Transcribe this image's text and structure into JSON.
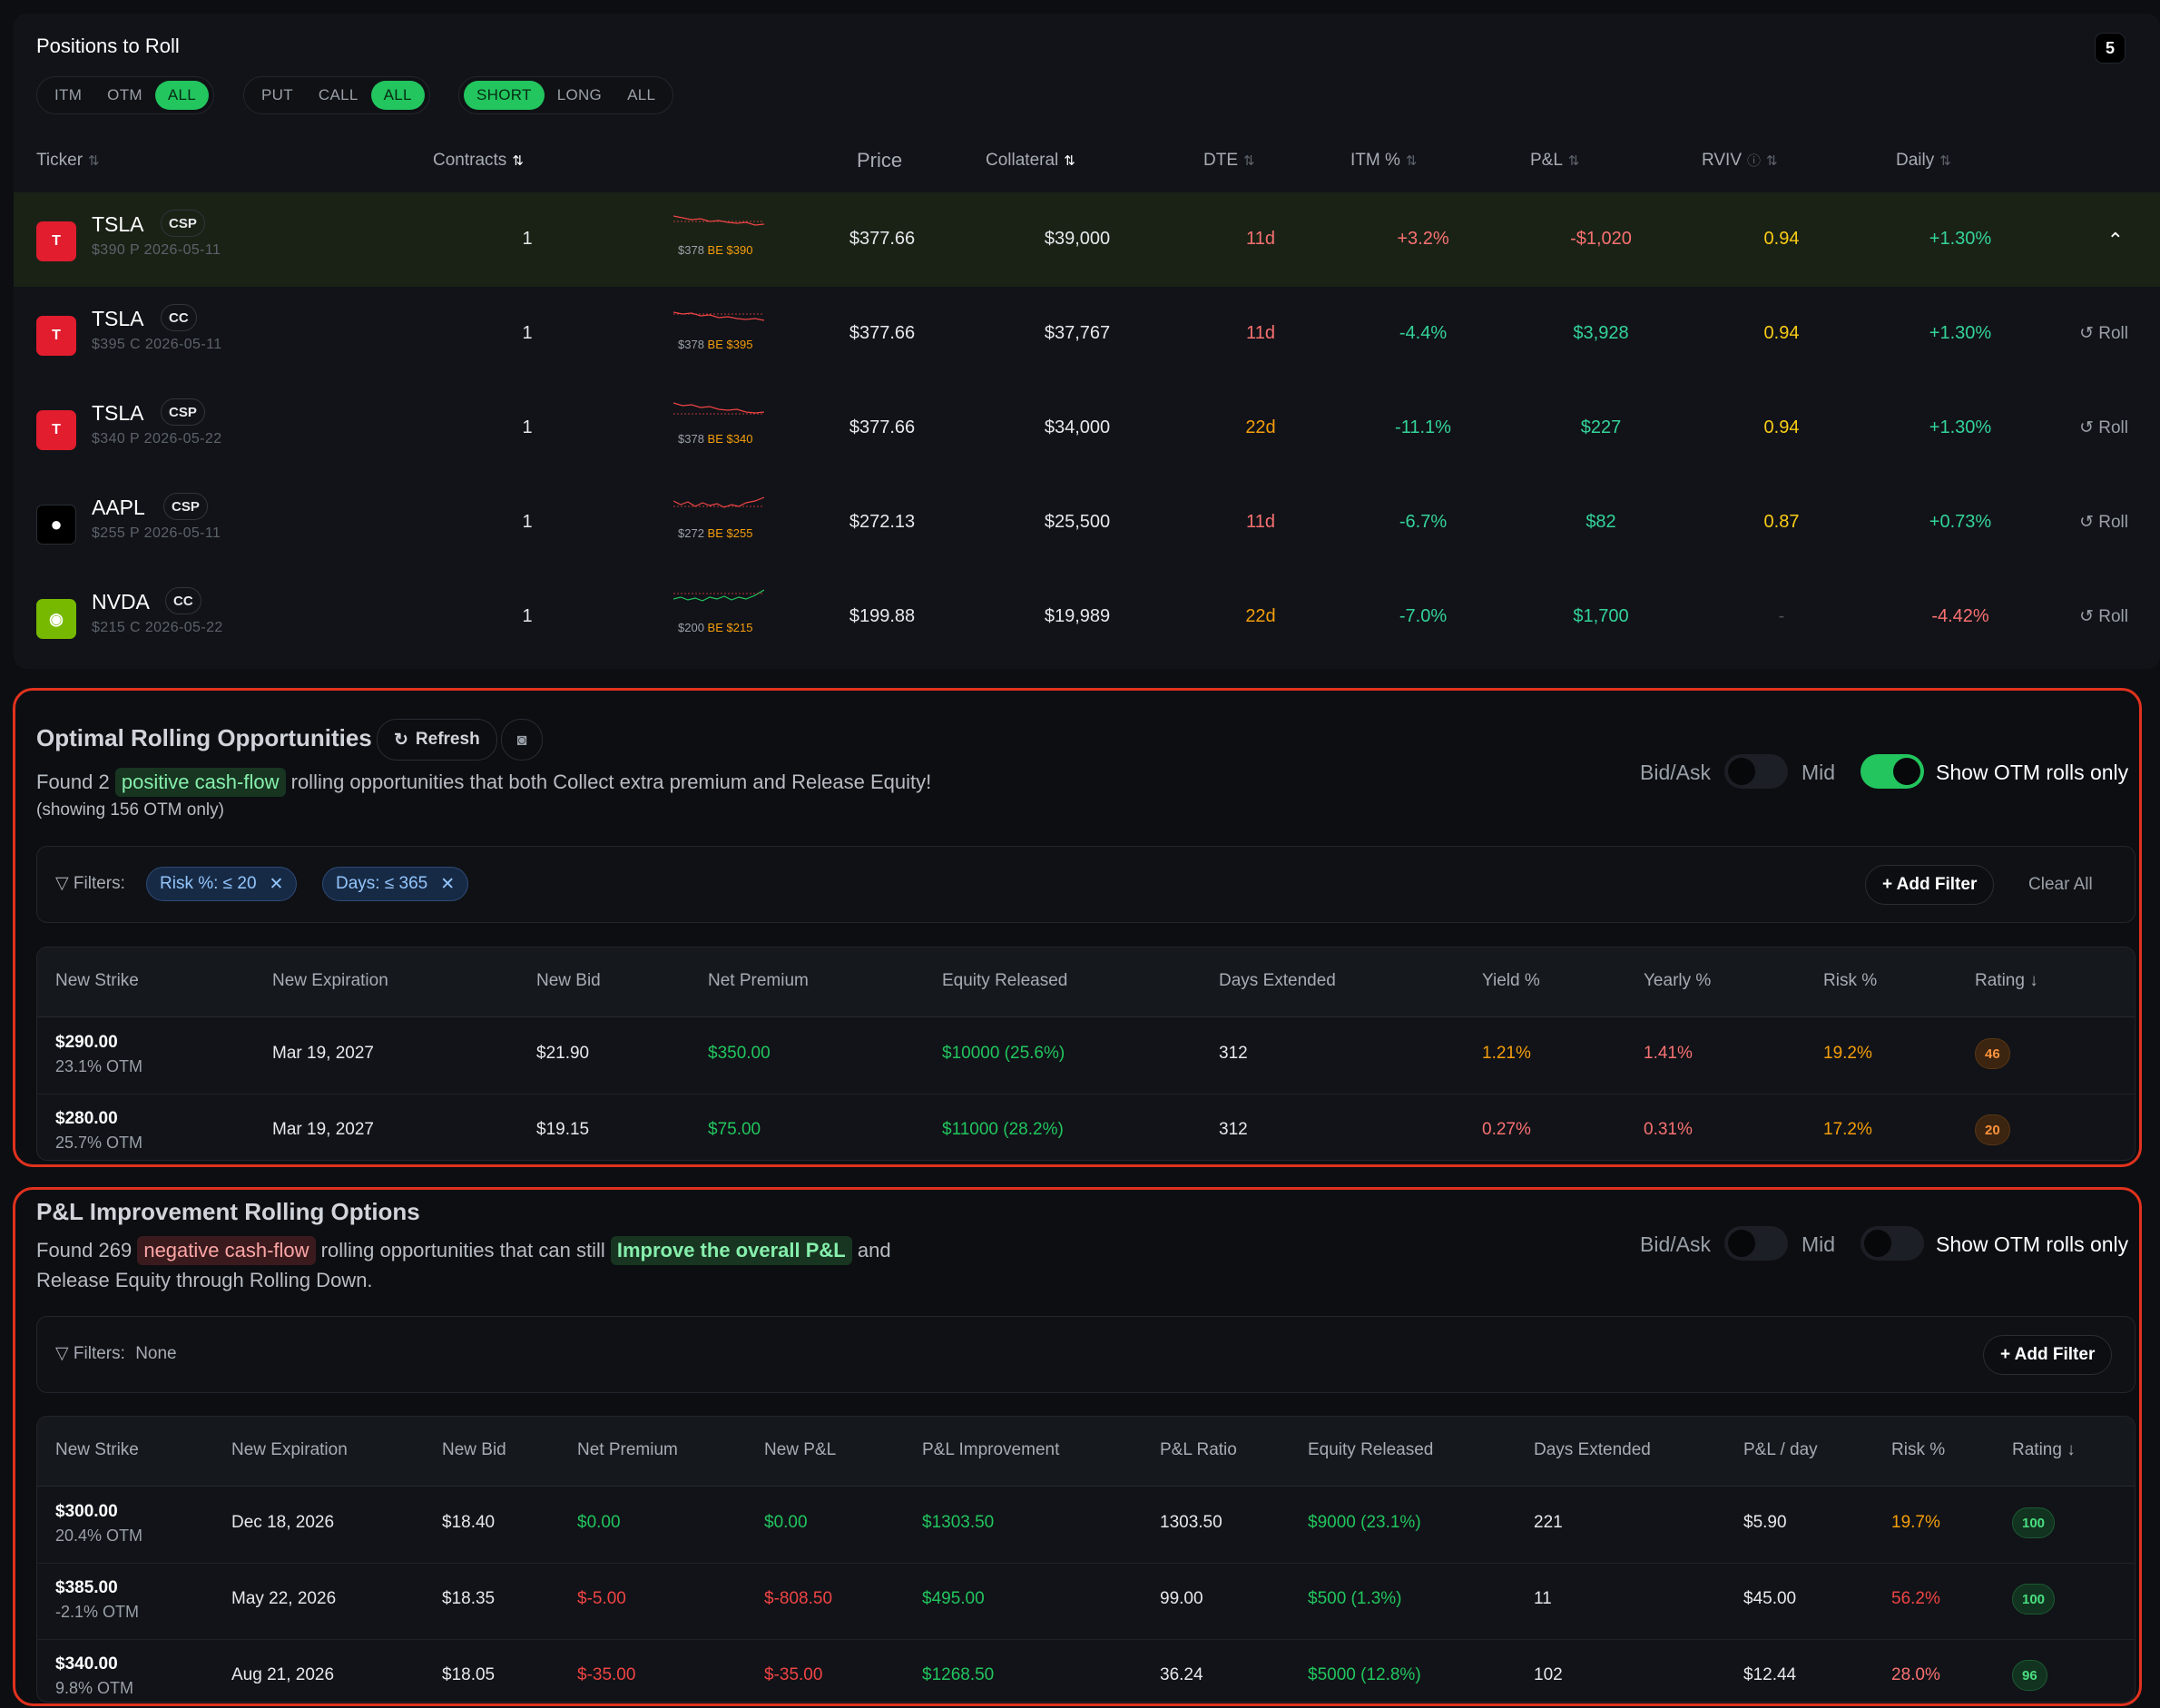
{
  "positions": {
    "title": "Positions to Roll",
    "count": "5",
    "filter_moneyness": [
      "ITM",
      "OTM",
      "ALL"
    ],
    "filter_type": [
      "PUT",
      "CALL",
      "ALL"
    ],
    "filter_side": [
      "SHORT",
      "LONG",
      "ALL"
    ],
    "columns": {
      "ticker": "Ticker",
      "contracts": "Contracts",
      "price": "Price",
      "collateral": "Collateral",
      "dte": "DTE",
      "itm": "ITM %",
      "pl": "P&L",
      "rviv": "RVIV",
      "daily": "Daily"
    },
    "roll_label": "Roll",
    "rows": [
      {
        "ticker": "TSLA",
        "tag": "CSP",
        "detail": "$390 P 2026-05-11",
        "contracts": "1",
        "spot": "$378",
        "be": "BE $390",
        "price": "$377.66",
        "collateral": "$39,000",
        "dte": "11d",
        "itm": "+3.2%",
        "pl": "-$1,020",
        "rviv": "0.94",
        "daily": "+1.30%"
      },
      {
        "ticker": "TSLA",
        "tag": "CC",
        "detail": "$395 C 2026-05-11",
        "contracts": "1",
        "spot": "$378",
        "be": "BE $395",
        "price": "$377.66",
        "collateral": "$37,767",
        "dte": "11d",
        "itm": "-4.4%",
        "pl": "$3,928",
        "rviv": "0.94",
        "daily": "+1.30%"
      },
      {
        "ticker": "TSLA",
        "tag": "CSP",
        "detail": "$340 P 2026-05-22",
        "contracts": "1",
        "spot": "$378",
        "be": "BE $340",
        "price": "$377.66",
        "collateral": "$34,000",
        "dte": "22d",
        "itm": "-11.1%",
        "pl": "$227",
        "rviv": "0.94",
        "daily": "+1.30%"
      },
      {
        "ticker": "AAPL",
        "tag": "CSP",
        "detail": "$255 P 2026-05-11",
        "contracts": "1",
        "spot": "$272",
        "be": "BE $255",
        "price": "$272.13",
        "collateral": "$25,500",
        "dte": "11d",
        "itm": "-6.7%",
        "pl": "$82",
        "rviv": "0.87",
        "daily": "+0.73%"
      },
      {
        "ticker": "NVDA",
        "tag": "CC",
        "detail": "$215 C 2026-05-22",
        "contracts": "1",
        "spot": "$200",
        "be": "BE $215",
        "price": "$199.88",
        "collateral": "$19,989",
        "dte": "22d",
        "itm": "-7.0%",
        "pl": "$1,700",
        "rviv": "-",
        "daily": "-4.42%"
      }
    ]
  },
  "optimal": {
    "title": "Optimal Rolling Opportunities",
    "refresh": "Refresh",
    "desc_pre": "Found 2",
    "highlight": "positive cash-flow",
    "desc_post": "rolling opportunities that both Collect extra premium and Release Equity!",
    "note": "(showing 156 OTM only)",
    "bidask": "Bid/Ask",
    "mid": "Mid",
    "otm_only": "Show OTM rolls only",
    "filters_label": "Filters:",
    "chips": [
      "Risk %: ≤ 20",
      "Days: ≤ 365"
    ],
    "add_filter": "+ Add Filter",
    "clear_all": "Clear All",
    "columns": [
      "New Strike",
      "New Expiration",
      "New Bid",
      "Net Premium",
      "Equity Released",
      "Days Extended",
      "Yield %",
      "Yearly %",
      "Risk %",
      "Rating ↓"
    ],
    "rows": [
      {
        "strike": "$290.00",
        "otm": "23.1% OTM",
        "exp": "Mar 19, 2027",
        "bid": "$21.90",
        "net": "$350.00",
        "equity": "$10000 (25.6%)",
        "days": "312",
        "yield": "1.21%",
        "yearly": "1.41%",
        "risk": "19.2%",
        "rating": "46"
      },
      {
        "strike": "$280.00",
        "otm": "25.7% OTM",
        "exp": "Mar 19, 2027",
        "bid": "$19.15",
        "net": "$75.00",
        "equity": "$11000 (28.2%)",
        "days": "312",
        "yield": "0.27%",
        "yearly": "0.31%",
        "risk": "17.2%",
        "rating": "20"
      }
    ]
  },
  "pl": {
    "title": "P&L Improvement Rolling Options",
    "desc_pre": "Found 269",
    "highlight1": "negative cash-flow",
    "desc_mid": "rolling opportunities that can still",
    "highlight2": "Improve the overall P&L",
    "desc_and": "and",
    "desc_line2": "Release Equity through Rolling Down.",
    "bidask": "Bid/Ask",
    "mid": "Mid",
    "otm_only": "Show OTM rolls only",
    "filters_label": "Filters:",
    "filters_value": "None",
    "add_filter": "+ Add Filter",
    "columns": [
      "New Strike",
      "New Expiration",
      "New Bid",
      "Net Premium",
      "New P&L",
      "P&L Improvement",
      "P&L Ratio",
      "Equity Released",
      "Days Extended",
      "P&L / day",
      "Risk %",
      "Rating ↓"
    ],
    "rows": [
      {
        "strike": "$300.00",
        "otm": "20.4% OTM",
        "exp": "Dec 18, 2026",
        "bid": "$18.40",
        "net": "$0.00",
        "newpl": "$0.00",
        "impr": "$1303.50",
        "ratio": "1303.50",
        "equity": "$9000 (23.1%)",
        "days": "221",
        "perday": "$5.90",
        "risk": "19.7%",
        "rating": "100"
      },
      {
        "strike": "$385.00",
        "otm": "-2.1% OTM",
        "exp": "May 22, 2026",
        "bid": "$18.35",
        "net": "$-5.00",
        "newpl": "$-808.50",
        "impr": "$495.00",
        "ratio": "99.00",
        "equity": "$500 (1.3%)",
        "days": "11",
        "perday": "$45.00",
        "risk": "56.2%",
        "rating": "100"
      },
      {
        "strike": "$340.00",
        "otm": "9.8% OTM",
        "exp": "Aug 21, 2026",
        "bid": "$18.05",
        "net": "$-35.00",
        "newpl": "$-35.00",
        "impr": "$1268.50",
        "ratio": "36.24",
        "equity": "$5000 (12.8%)",
        "days": "102",
        "perday": "$12.44",
        "risk": "28.0%",
        "rating": "96"
      }
    ]
  }
}
